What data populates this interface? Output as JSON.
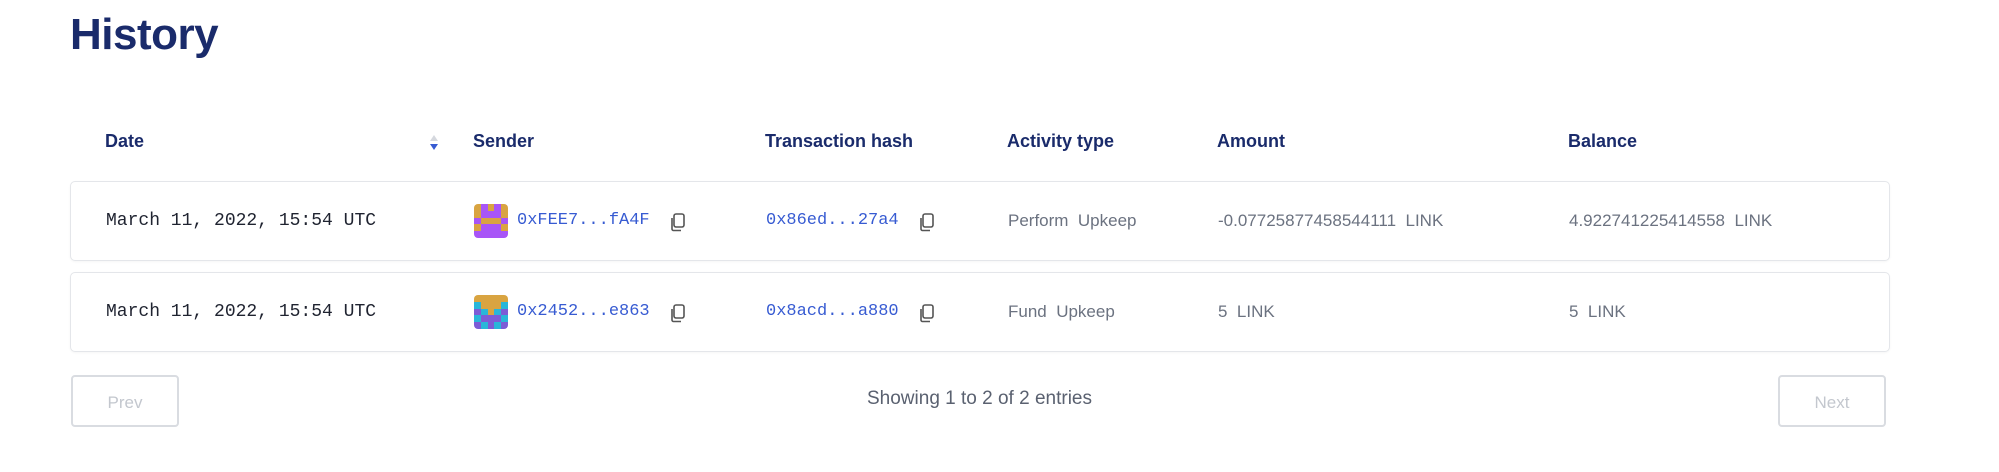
{
  "page": {
    "title": "History"
  },
  "table": {
    "columns": [
      "Date",
      "Sender",
      "Transaction hash",
      "Activity type",
      "Amount",
      "Balance"
    ],
    "sort": {
      "column": "Date",
      "direction": "descending"
    },
    "rows": [
      {
        "date": "March 11, 2022, 15:54 UTC",
        "sender": "0xFEE7...fA4F",
        "tx_hash": "0x86ed...27a4",
        "activity": "Perform  Upkeep",
        "amount": "-0.07725877458544111  LINK",
        "balance": "4.922741225414558  LINK",
        "avatar_colors": [
          "#d9a441",
          "#a855f7"
        ]
      },
      {
        "date": "March 11, 2022, 15:54 UTC",
        "sender": "0x2452...e863",
        "tx_hash": "0x8acd...a880",
        "activity": "Fund  Upkeep",
        "amount": "5  LINK",
        "balance": "5  LINK",
        "avatar_colors": [
          "#d9a441",
          "#29b6d9",
          "#7c5cd6"
        ]
      }
    ]
  },
  "pagination": {
    "prev_label": "Prev",
    "next_label": "Next",
    "summary": "Showing 1 to 2 of 2 entries"
  },
  "colors": {
    "title": "#1a2b6b",
    "link": "#375bd2",
    "muted": "#6b7280"
  },
  "icons": {
    "sort": "sort-arrows-icon",
    "copy": "copy-icon",
    "avatar": "identicon"
  }
}
